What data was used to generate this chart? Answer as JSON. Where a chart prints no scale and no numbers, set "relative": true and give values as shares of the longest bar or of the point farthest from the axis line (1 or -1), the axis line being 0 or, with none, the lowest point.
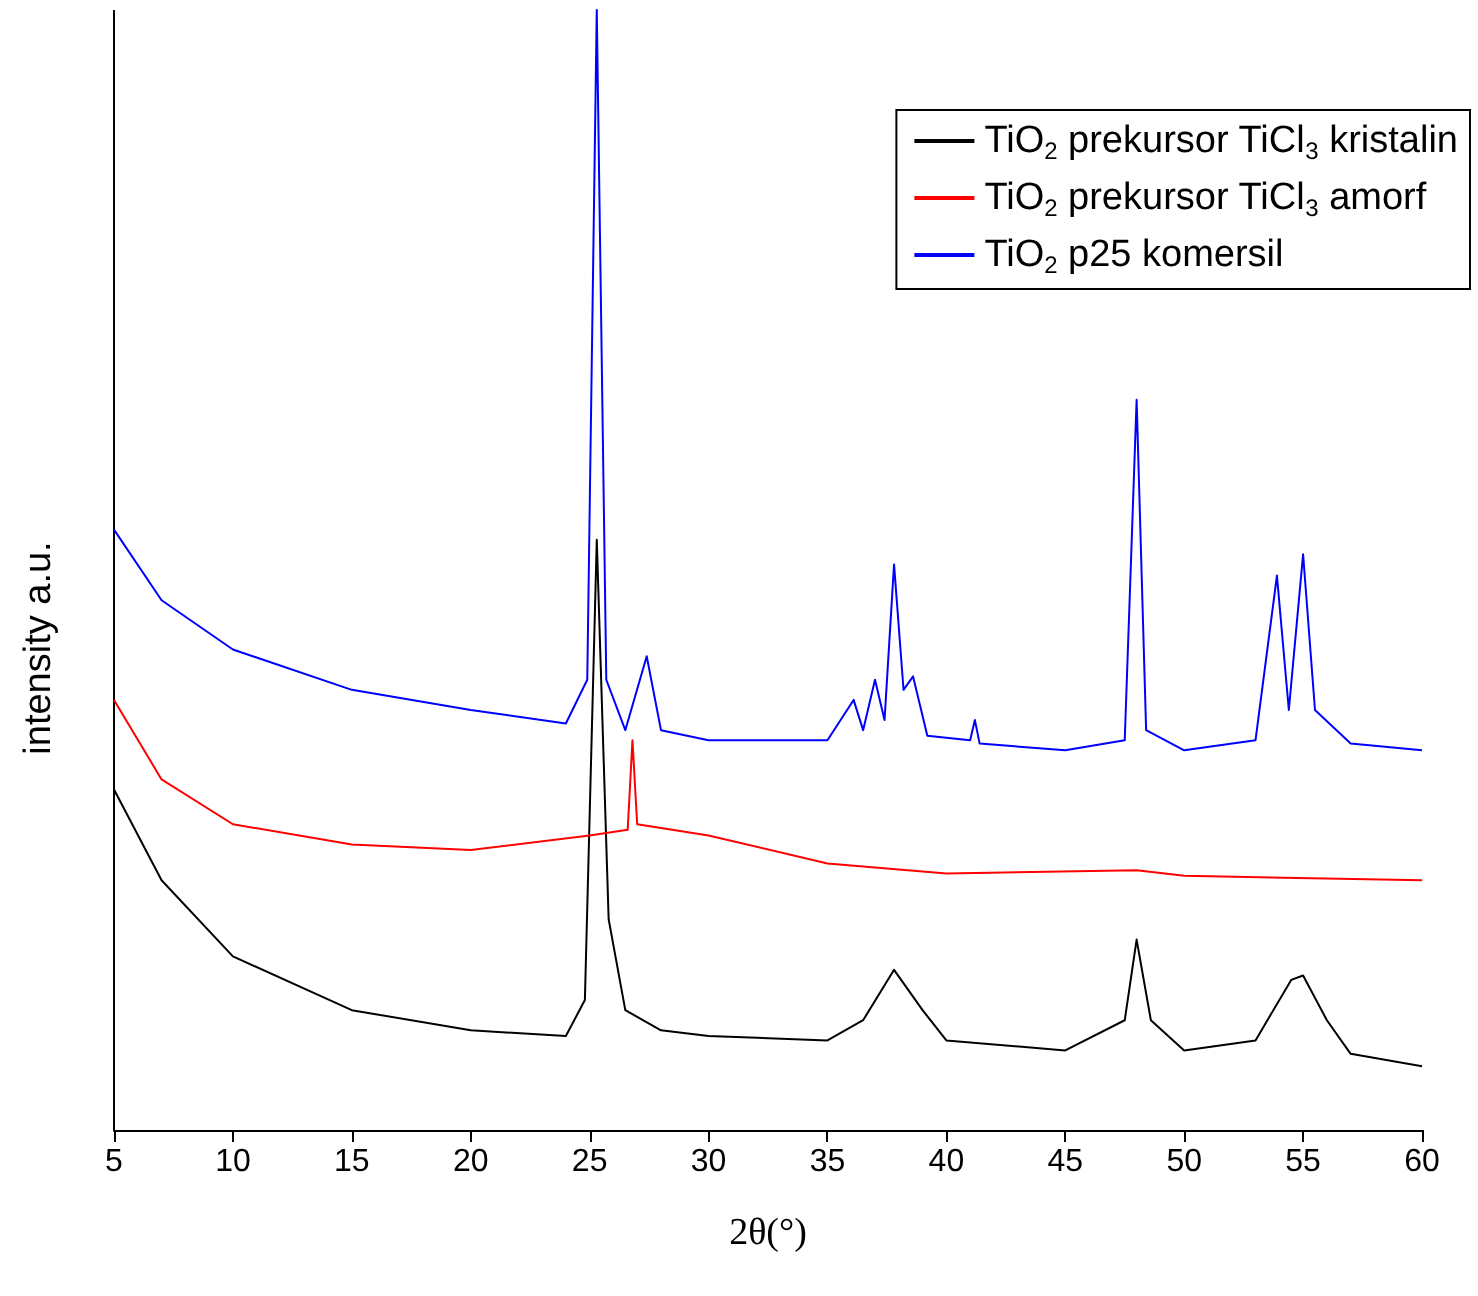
{
  "chart_data": {
    "type": "line",
    "relative": true,
    "xlabel": "2θ(°)",
    "ylabel": "intensity a.u.",
    "xlim": [
      5,
      60
    ],
    "xticks": [
      5,
      10,
      15,
      20,
      25,
      30,
      35,
      40,
      45,
      50,
      55,
      60
    ],
    "legend": "top right",
    "grid": false,
    "marker": "none",
    "series": [
      {
        "name": "TiO$_{2}$ prekursor TiCl$_{3}$ kristalin",
        "color": "#000000",
        "x": [
          5,
          7,
          10,
          15,
          20,
          24,
          24.8,
          25.3,
          25.8,
          26.5,
          28,
          30,
          35,
          36.5,
          37.8,
          39,
          40,
          45,
          47.5,
          48,
          48.6,
          50,
          53,
          54.5,
          55,
          56,
          57,
          60
        ],
        "values": [
          0.304,
          0.223,
          0.155,
          0.107,
          0.089,
          0.084,
          0.116,
          0.527,
          0.188,
          0.107,
          0.089,
          0.084,
          0.08,
          0.098,
          0.143,
          0.107,
          0.08,
          0.071,
          0.098,
          0.17,
          0.098,
          0.071,
          0.08,
          0.134,
          0.138,
          0.098,
          0.068,
          0.057
        ]
      },
      {
        "name": "TiO$_{2}$ prekursor TiCl$_{3}$ amorf",
        "color": "#ff0000",
        "x": [
          5,
          7,
          10,
          15,
          20,
          25,
          26.6,
          26.8,
          27,
          30,
          35,
          40,
          48,
          50,
          60
        ],
        "values": [
          0.384,
          0.313,
          0.273,
          0.255,
          0.25,
          0.263,
          0.268,
          0.348,
          0.273,
          0.263,
          0.238,
          0.229,
          0.232,
          0.227,
          0.223
        ]
      },
      {
        "name": "TiO$_{2}$ p25 komersil",
        "color": "#0000ff",
        "x": [
          5,
          7,
          10,
          15,
          20,
          24,
          24.9,
          25.3,
          25.7,
          26.5,
          27.4,
          28,
          30,
          35,
          36.1,
          36.5,
          37,
          37.4,
          37.8,
          38.2,
          38.6,
          39.2,
          41,
          41.2,
          41.4,
          45,
          47.5,
          48,
          48.4,
          50,
          53,
          53.9,
          54.4,
          55,
          55.5,
          57,
          60
        ],
        "values": [
          0.536,
          0.473,
          0.429,
          0.393,
          0.375,
          0.363,
          0.402,
          1,
          0.402,
          0.357,
          0.423,
          0.357,
          0.348,
          0.348,
          0.384,
          0.357,
          0.402,
          0.366,
          0.505,
          0.393,
          0.405,
          0.352,
          0.348,
          0.366,
          0.345,
          0.339,
          0.348,
          0.652,
          0.357,
          0.339,
          0.348,
          0.495,
          0.375,
          0.514,
          0.375,
          0.345,
          0.339
        ]
      }
    ]
  }
}
